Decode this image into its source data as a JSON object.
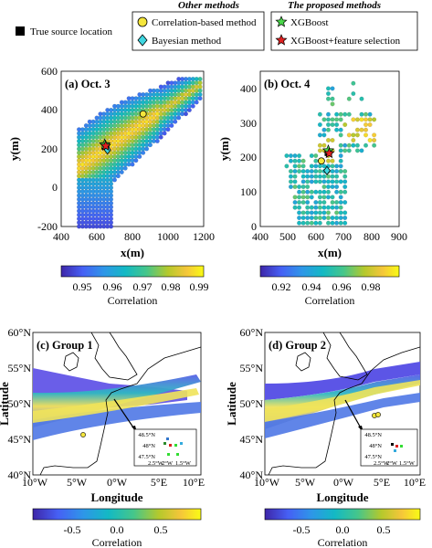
{
  "legend": {
    "true_source": "True source location",
    "other_title": "Other methods",
    "proposed_title": "The proposed methods",
    "items": [
      {
        "label": "Correlation-based method",
        "marker": "circle",
        "color": "#f5e63c"
      },
      {
        "label": "Bayesian method",
        "marker": "diamond",
        "color": "#3fd6e0"
      },
      {
        "label": "XGBoost",
        "marker": "star",
        "color": "#4ad84a"
      },
      {
        "label": "XGBoost+feature selection",
        "marker": "star",
        "color": "#e02020"
      }
    ]
  },
  "chart_data": [
    {
      "type": "scatter",
      "panel_label": "(a) Oct. 3",
      "xlabel": "x(m)",
      "ylabel": "y(m)",
      "xlim": [
        400,
        1200
      ],
      "ylim": [
        -200,
        600
      ],
      "xticks": [
        "400",
        "600",
        "800",
        "1000",
        "1200"
      ],
      "yticks": [
        "-200",
        "0",
        "200",
        "400",
        "600"
      ],
      "markers": {
        "true_source": [
          650,
          215
        ],
        "correlation": [
          860,
          380
        ],
        "bayesian": [
          660,
          195
        ],
        "xgboost": [
          645,
          222
        ],
        "xgboost_fs": [
          650,
          215
        ]
      },
      "colorbar": {
        "label": "Correlation",
        "ticks": [
          "0.95",
          "0.96",
          "0.97",
          "0.98",
          "0.99"
        ],
        "range": [
          0.942,
          0.998
        ]
      }
    },
    {
      "type": "scatter",
      "panel_label": "(b) Oct. 4",
      "xlabel": "x(m)",
      "ylabel": "y(m)",
      "xlim": [
        400,
        900
      ],
      "ylim": [
        0,
        450
      ],
      "xticks": [
        "400",
        "500",
        "600",
        "700",
        "800",
        "900"
      ],
      "yticks": [
        "0",
        "100",
        "200",
        "300",
        "400"
      ],
      "markers": {
        "true_source": [
          645,
          215
        ],
        "correlation": [
          620,
          190
        ],
        "bayesian": [
          640,
          162
        ],
        "xgboost": [
          645,
          220
        ],
        "xgboost_fs": [
          648,
          212
        ]
      },
      "colorbar": {
        "label": "Correlation",
        "ticks": [
          "0.92",
          "0.94",
          "0.96",
          "0.98"
        ],
        "range": [
          0.905,
          0.998
        ]
      }
    },
    {
      "type": "heatmap",
      "panel_label": "(c) Group 1",
      "xlabel": "Longitude",
      "ylabel": "Latitude",
      "xlim": [
        -10,
        10
      ],
      "ylim": [
        40,
        60
      ],
      "xticks": [
        "10°W",
        "5°W",
        "0°W",
        "5°E",
        "10°E"
      ],
      "yticks": [
        "40°N",
        "45°N",
        "50°N",
        "55°N",
        "60°N"
      ],
      "inset": {
        "yticks": [
          "48.5°N",
          "48°N",
          "47.5°N"
        ],
        "xticks": [
          "2.5°W",
          "2°W",
          "1.5°W"
        ]
      },
      "colorbar": {
        "label": "Correlation",
        "ticks": [
          "-0.5",
          "0.0",
          "0.5"
        ],
        "range": [
          -0.85,
          0.85
        ]
      }
    },
    {
      "type": "heatmap",
      "panel_label": "(d) Group 2",
      "xlabel": "Longitude",
      "ylabel": "Latitude",
      "xlim": [
        -10,
        10
      ],
      "ylim": [
        40,
        60
      ],
      "xticks": [
        "10°W",
        "5°W",
        "0°W",
        "5°E",
        "10°E"
      ],
      "yticks": [
        "40°N",
        "45°N",
        "50°N",
        "55°N",
        "60°N"
      ],
      "inset": {
        "yticks": [
          "48.5°N",
          "48°N",
          "47.5°N"
        ],
        "xticks": [
          "2.5°W",
          "2°W",
          "1.5°W"
        ]
      },
      "colorbar": {
        "label": "Correlation",
        "ticks": [
          "-0.5",
          "0.0",
          "0.5"
        ],
        "range": [
          -0.85,
          0.85
        ]
      }
    }
  ]
}
